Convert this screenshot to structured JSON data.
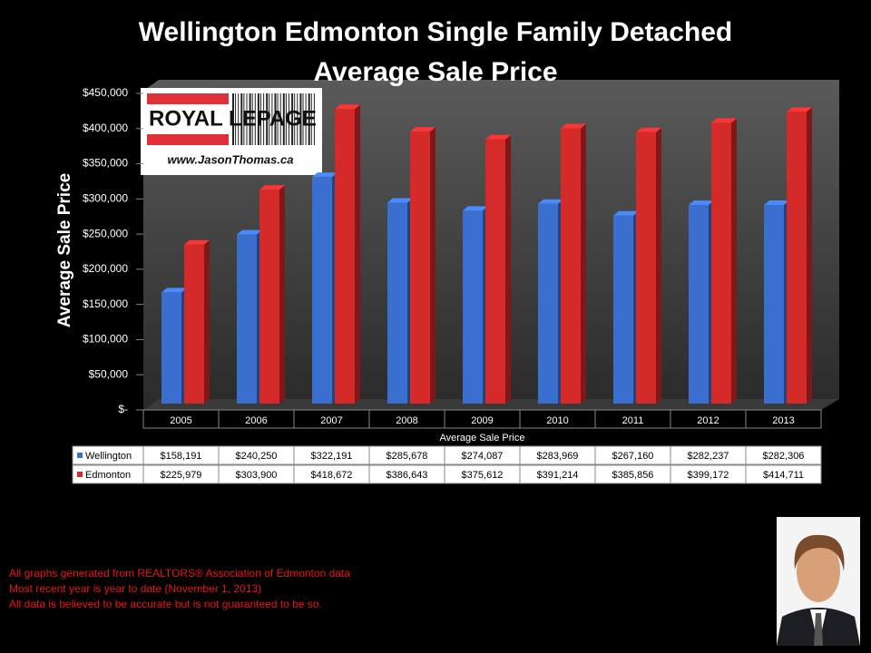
{
  "chart_data": {
    "type": "bar",
    "title": "Wellington Edmonton Single Family Detached Average Sale Price",
    "y_label": "Average Sale Price",
    "x_label": "Average Sale Price",
    "categories": [
      "2005",
      "2006",
      "2007",
      "2008",
      "2009",
      "2010",
      "2011",
      "2012",
      "2013"
    ],
    "series": [
      {
        "name": "Wellington",
        "color": "#3a6fd0",
        "values": [
          158191,
          240250,
          322191,
          285678,
          274087,
          283969,
          267160,
          282237,
          282306
        ],
        "value_labels": [
          "$158,191",
          "$240,250",
          "$322,191",
          "$285,678",
          "$274,087",
          "$283,969",
          "$267,160",
          "$282,237",
          "$282,306"
        ]
      },
      {
        "name": "Edmonton",
        "color": "#d42a2a",
        "values": [
          225979,
          303900,
          418672,
          386643,
          375612,
          391214,
          385856,
          399172,
          414711
        ],
        "value_labels": [
          "$225,979",
          "$303,900",
          "$418,672",
          "$386,643",
          "$375,612",
          "$391,214",
          "$385,856",
          "$399,172",
          "$414,711"
        ]
      }
    ],
    "ylim": [
      0,
      450000
    ],
    "yticks": [
      {
        "value": 0,
        "label": "$-"
      },
      {
        "value": 50000,
        "label": "$50,000"
      },
      {
        "value": 100000,
        "label": "$100,000"
      },
      {
        "value": 150000,
        "label": "$150,000"
      },
      {
        "value": 200000,
        "label": "$200,000"
      },
      {
        "value": 250000,
        "label": "$250,000"
      },
      {
        "value": 300000,
        "label": "$300,000"
      },
      {
        "value": 350000,
        "label": "$350,000"
      },
      {
        "value": 400000,
        "label": "$400,000"
      },
      {
        "value": 450000,
        "label": "$450,000"
      }
    ],
    "grid": false
  },
  "logo": {
    "brand": "ROYAL LEPAGE",
    "url": "www.JasonThomas.ca"
  },
  "footnotes": [
    "All graphs generated from REALTORS® Association of Edmonton data",
    "Most recent year is year to date (November 1, 2013)",
    "All data is believed to be accurate but is not guaranteed to be so."
  ]
}
